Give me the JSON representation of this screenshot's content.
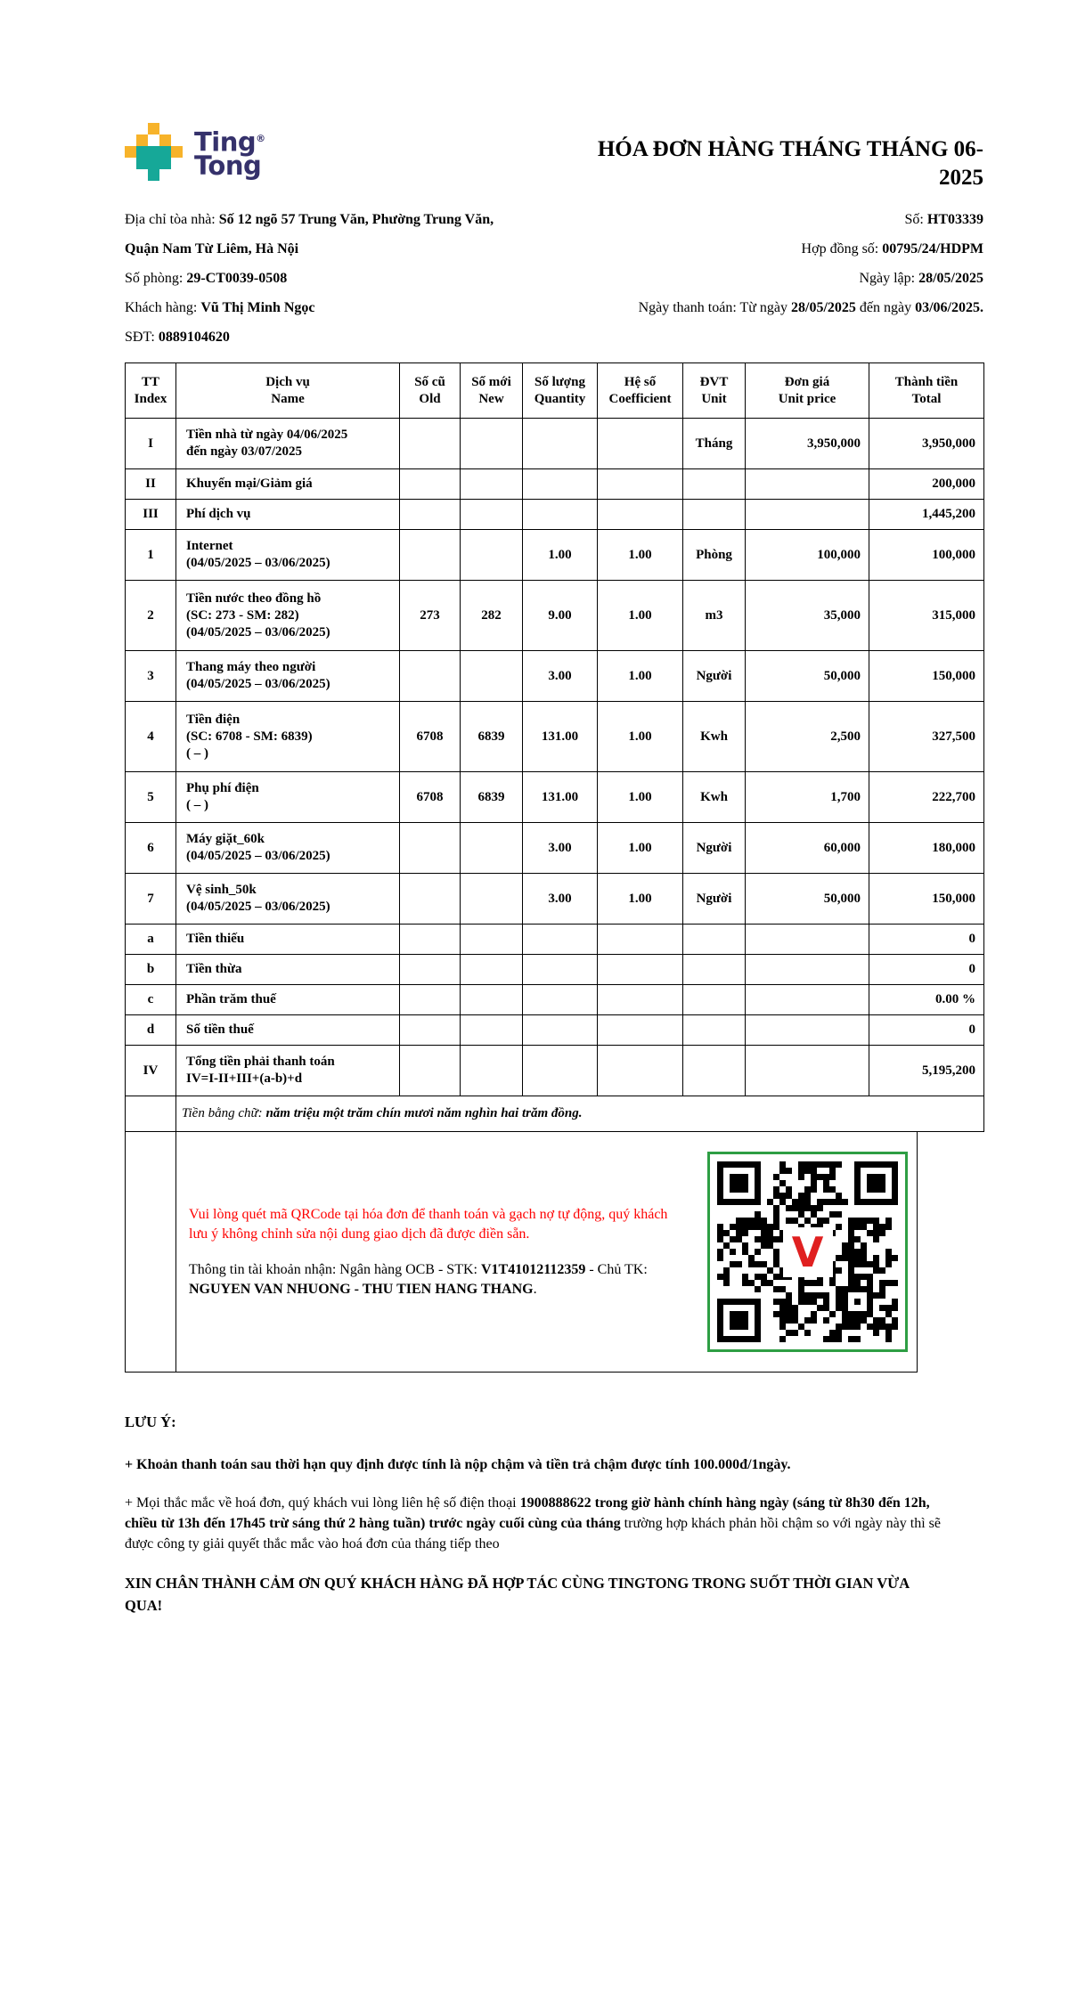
{
  "brand": {
    "wordmark_line1": "Ting",
    "wordmark_line2": "Tong",
    "registered_mark": "®"
  },
  "title": {
    "line1": "HÓA ĐƠN HÀNG THÁNG THÁNG 06-",
    "line2": "2025"
  },
  "info_rows": [
    {
      "left": [
        {
          "t": "Địa chỉ tòa nhà: "
        },
        {
          "t": "Số 12 ngõ 57 Trung Văn, Phường Trung Văn,",
          "b": true
        }
      ],
      "right": [
        {
          "t": "Số: "
        },
        {
          "t": "HT03339",
          "b": true
        }
      ]
    },
    {
      "left": [
        {
          "t": "Quận Nam Từ Liêm, Hà Nội",
          "b": true
        }
      ],
      "right": [
        {
          "t": "Hợp đồng số: "
        },
        {
          "t": "00795/24/HDPM",
          "b": true
        }
      ]
    },
    {
      "left": [
        {
          "t": "Số phòng: "
        },
        {
          "t": "29-CT0039-0508",
          "b": true
        }
      ],
      "right": [
        {
          "t": "Ngày lập: "
        },
        {
          "t": "28/05/2025",
          "b": true
        }
      ]
    },
    {
      "left": [
        {
          "t": "Khách hàng: "
        },
        {
          "t": "Vũ Thị Minh Ngọc",
          "b": true
        }
      ],
      "right": [
        {
          "t": "Ngày thanh toán: Từ ngày "
        },
        {
          "t": "28/05/2025",
          "b": true
        },
        {
          "t": " đến ngày "
        },
        {
          "t": "03/06/2025.",
          "b": true
        }
      ]
    },
    {
      "left": [
        {
          "t": "SĐT: "
        },
        {
          "t": "0889104620",
          "b": true
        }
      ],
      "right": []
    }
  ],
  "table": {
    "headers": [
      {
        "vn": "TT",
        "en": "Index"
      },
      {
        "vn": "Dịch vụ",
        "en": "Name"
      },
      {
        "vn": "Số cũ",
        "en": "Old"
      },
      {
        "vn": "Số mới",
        "en": "New"
      },
      {
        "vn": "Số lượng",
        "en": "Quantity"
      },
      {
        "vn": "Hệ số",
        "en": "Coefficient"
      },
      {
        "vn": "ĐVT",
        "en": "Unit"
      },
      {
        "vn": "Đơn giá",
        "en": "Unit price"
      },
      {
        "vn": "Thành tiền",
        "en": "Total"
      }
    ],
    "rows": [
      {
        "tt": "I",
        "name": [
          "Tiền nhà từ ngày 04/06/2025",
          "đến ngày 03/07/2025"
        ],
        "old": "",
        "new": "",
        "qty": "",
        "coef": "",
        "unit": "Tháng",
        "price": "3,950,000",
        "total": "3,950,000"
      },
      {
        "tt": "II",
        "name": [
          "Khuyến mại/Giảm giá"
        ],
        "old": "",
        "new": "",
        "qty": "",
        "coef": "",
        "unit": "",
        "price": "",
        "total": "200,000"
      },
      {
        "tt": "III",
        "name": [
          "Phí dịch vụ"
        ],
        "old": "",
        "new": "",
        "qty": "",
        "coef": "",
        "unit": "",
        "price": "",
        "total": "1,445,200"
      },
      {
        "tt": "1",
        "name": [
          "Internet",
          "(04/05/2025 – 03/06/2025)"
        ],
        "old": "",
        "new": "",
        "qty": "1.00",
        "coef": "1.00",
        "unit": "Phòng",
        "price": "100,000",
        "total": "100,000"
      },
      {
        "tt": "2",
        "name": [
          "Tiền nước theo đồng hồ",
          "(SC: 273 - SM: 282)",
          "(04/05/2025 – 03/06/2025)"
        ],
        "old": "273",
        "new": "282",
        "qty": "9.00",
        "coef": "1.00",
        "unit": "m3",
        "price": "35,000",
        "total": "315,000"
      },
      {
        "tt": "3",
        "name": [
          "Thang máy theo người",
          "(04/05/2025 – 03/06/2025)"
        ],
        "old": "",
        "new": "",
        "qty": "3.00",
        "coef": "1.00",
        "unit": "Người",
        "price": "50,000",
        "total": "150,000"
      },
      {
        "tt": "4",
        "name": [
          "Tiền điện",
          "(SC: 6708 - SM: 6839)",
          "( – )"
        ],
        "old": "6708",
        "new": "6839",
        "qty": "131.00",
        "coef": "1.00",
        "unit": "Kwh",
        "price": "2,500",
        "total": "327,500"
      },
      {
        "tt": "5",
        "name": [
          "Phụ phí điện",
          "( – )"
        ],
        "old": "6708",
        "new": "6839",
        "qty": "131.00",
        "coef": "1.00",
        "unit": "Kwh",
        "price": "1,700",
        "total": "222,700"
      },
      {
        "tt": "6",
        "name": [
          "Máy giặt_60k",
          "(04/05/2025 – 03/06/2025)"
        ],
        "old": "",
        "new": "",
        "qty": "3.00",
        "coef": "1.00",
        "unit": "Người",
        "price": "60,000",
        "total": "180,000"
      },
      {
        "tt": "7",
        "name": [
          "Vệ sinh_50k",
          "(04/05/2025 – 03/06/2025)"
        ],
        "old": "",
        "new": "",
        "qty": "3.00",
        "coef": "1.00",
        "unit": "Người",
        "price": "50,000",
        "total": "150,000"
      },
      {
        "tt": "a",
        "name": [
          "Tiền thiếu"
        ],
        "old": "",
        "new": "",
        "qty": "",
        "coef": "",
        "unit": "",
        "price": "",
        "total": "0"
      },
      {
        "tt": "b",
        "name": [
          "Tiền thừa"
        ],
        "old": "",
        "new": "",
        "qty": "",
        "coef": "",
        "unit": "",
        "price": "",
        "total": "0"
      },
      {
        "tt": "c",
        "name": [
          "Phần trăm thuế"
        ],
        "old": "",
        "new": "",
        "qty": "",
        "coef": "",
        "unit": "",
        "price": "",
        "total": "0.00 %"
      },
      {
        "tt": "d",
        "name": [
          "Số tiền thuế"
        ],
        "old": "",
        "new": "",
        "qty": "",
        "coef": "",
        "unit": "",
        "price": "",
        "total": "0"
      },
      {
        "tt": "IV",
        "name": [
          "Tổng tiền phải thanh toán",
          "IV=I-II+III+(a-b)+d"
        ],
        "old": "",
        "new": "",
        "qty": "",
        "coef": "",
        "unit": "",
        "price": "",
        "total": "5,195,200"
      }
    ],
    "amount_in_words": [
      {
        "t": "Tiền bằng chữ: "
      },
      {
        "t": "năm triệu một trăm chín mươi năm nghìn hai trăm đồng.",
        "b": true
      }
    ]
  },
  "qr_section": {
    "note": "Vui lòng quét mã QRCode tại hóa đơn để thanh toán và gạch nợ tự động, quý khách lưu ý không chỉnh sửa nội dung giao dịch đã được điền sẵn.",
    "account_line": [
      {
        "t": "Thông tin tài khoản nhận: Ngân hàng OCB - STK: "
      },
      {
        "t": "V1T41012112359",
        "b": true
      },
      {
        "t": " - Chủ TK: "
      },
      {
        "t": "NGUYEN VAN NHUONG - THU TIEN HANG THANG",
        "b": true
      },
      {
        "t": "."
      }
    ],
    "qr_center_letter": "V"
  },
  "footer": {
    "heading": "LƯU Ý:",
    "notes": [
      [
        {
          "t": "+ Khoản thanh toán sau thời hạn quy định được tính là nộp chậm và tiền trả chậm được tính 100.000đ/1ngày.",
          "b": true
        }
      ],
      [
        {
          "t": "+ Mọi thắc mắc về hoá đơn, quý khách vui lòng liên hệ số điện thoại "
        },
        {
          "t": "1900888622 trong giờ hành chính hàng ngày (sáng từ 8h30 đến 12h, chiều từ 13h đến 17h45 trừ sáng thứ 2 hàng tuần)",
          "b": true
        },
        {
          "t": " trước ngày cuối cùng của tháng",
          "b": true
        },
        {
          "t": " trường hợp khách phản hồi chậm so với ngày này thì sẽ được công ty giải quyết thắc mắc vào hoá đơn của tháng tiếp theo"
        }
      ]
    ],
    "thanks": "XIN CHÂN THÀNH CẢM ƠN QUÝ KHÁCH HÀNG ĐÃ HỢP TÁC CÙNG TINGTONG TRONG SUỐT THỜI GIAN VỪA QUA!"
  },
  "colors": {
    "brand_navy": "#35316B",
    "brand_yellow": "#F7B32A",
    "brand_teal": "#16A898",
    "note_red": "#FE0000",
    "qr_border_green": "#2E9E44",
    "qr_logo_red": "#E02020"
  }
}
